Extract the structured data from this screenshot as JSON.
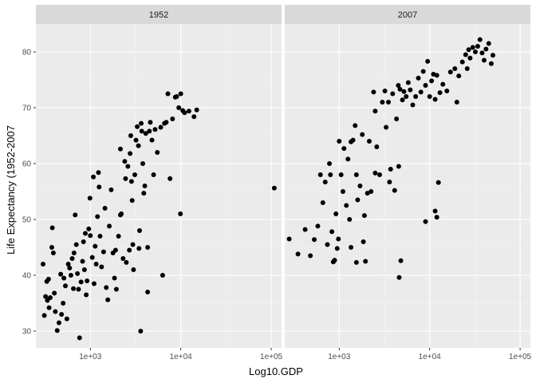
{
  "chart_data": {
    "type": "scatter",
    "xlabel": "Log10.GDP",
    "ylabel": "Life Expectancy (1952-2007",
    "x_scale": "log10",
    "xlim": [
      250,
      130000
    ],
    "ylim": [
      27,
      85
    ],
    "x_ticks": [
      {
        "value": 1000,
        "label": "1e+03"
      },
      {
        "value": 10000,
        "label": "1e+04"
      },
      {
        "value": 100000,
        "label": "1e+05"
      }
    ],
    "y_ticks": [
      {
        "value": 30,
        "label": "30"
      },
      {
        "value": 40,
        "label": "40"
      },
      {
        "value": 50,
        "label": "50"
      },
      {
        "value": 60,
        "label": "60"
      },
      {
        "value": 70,
        "label": "70"
      },
      {
        "value": 80,
        "label": "80"
      }
    ],
    "grid": true,
    "point_color": "#000000",
    "panel_background": "#ebebeb",
    "strip_background": "#d9d9d9",
    "panels": [
      {
        "facet": "1952",
        "points": [
          [
            300,
            42.0
          ],
          [
            310,
            32.8
          ],
          [
            320,
            36.2
          ],
          [
            330,
            38.9
          ],
          [
            335,
            35.5
          ],
          [
            345,
            39.3
          ],
          [
            350,
            34.2
          ],
          [
            360,
            36.0
          ],
          [
            375,
            45.0
          ],
          [
            380,
            48.5
          ],
          [
            390,
            44.0
          ],
          [
            400,
            36.8
          ],
          [
            410,
            33.5
          ],
          [
            430,
            30.1
          ],
          [
            450,
            31.5
          ],
          [
            470,
            40.2
          ],
          [
            480,
            33.0
          ],
          [
            500,
            35.0
          ],
          [
            510,
            39.5
          ],
          [
            530,
            38.1
          ],
          [
            550,
            32.2
          ],
          [
            570,
            42.0
          ],
          [
            590,
            41.3
          ],
          [
            610,
            40.0
          ],
          [
            630,
            43.0
          ],
          [
            650,
            37.6
          ],
          [
            660,
            44.0
          ],
          [
            680,
            50.8
          ],
          [
            700,
            45.5
          ],
          [
            720,
            40.3
          ],
          [
            740,
            37.5
          ],
          [
            760,
            28.8
          ],
          [
            790,
            38.8
          ],
          [
            820,
            42.5
          ],
          [
            840,
            46.0
          ],
          [
            860,
            41.0
          ],
          [
            880,
            47.5
          ],
          [
            900,
            36.5
          ],
          [
            920,
            39.0
          ],
          [
            960,
            48.3
          ],
          [
            990,
            53.8
          ],
          [
            1000,
            47.1
          ],
          [
            1050,
            43.2
          ],
          [
            1080,
            57.6
          ],
          [
            1100,
            38.5
          ],
          [
            1130,
            45.2
          ],
          [
            1160,
            42.0
          ],
          [
            1200,
            50.5
          ],
          [
            1230,
            58.4
          ],
          [
            1280,
            47.0
          ],
          [
            1330,
            41.5
          ],
          [
            1400,
            44.2
          ],
          [
            1450,
            52.0
          ],
          [
            1500,
            37.8
          ],
          [
            1560,
            35.6
          ],
          [
            1620,
            48.8
          ],
          [
            1700,
            55.3
          ],
          [
            1780,
            44.0
          ],
          [
            1850,
            39.5
          ],
          [
            1940,
            37.5
          ],
          [
            2050,
            47.0
          ],
          [
            2150,
            62.6
          ],
          [
            2200,
            51.0
          ],
          [
            2300,
            43.0
          ],
          [
            2400,
            60.4
          ],
          [
            2450,
            57.3
          ],
          [
            2500,
            42.3
          ],
          [
            2600,
            59.5
          ],
          [
            2700,
            44.5
          ],
          [
            2750,
            61.8
          ],
          [
            2800,
            65.0
          ],
          [
            2850,
            56.8
          ],
          [
            2900,
            53.4
          ],
          [
            2950,
            45.5
          ],
          [
            3000,
            41.0
          ],
          [
            3100,
            58.0
          ],
          [
            3200,
            64.2
          ],
          [
            3300,
            66.6
          ],
          [
            3400,
            63.2
          ],
          [
            3450,
            44.8
          ],
          [
            3500,
            48.0
          ],
          [
            3600,
            30.0
          ],
          [
            3700,
            65.8
          ],
          [
            3800,
            60.0
          ],
          [
            3900,
            54.7
          ],
          [
            4000,
            56.0
          ],
          [
            4100,
            65.4
          ],
          [
            4300,
            45.0
          ],
          [
            4500,
            65.8
          ],
          [
            4600,
            67.4
          ],
          [
            4800,
            64.2
          ],
          [
            5000,
            58.0
          ],
          [
            5200,
            66.1
          ],
          [
            5500,
            62.0
          ],
          [
            6000,
            66.5
          ],
          [
            6300,
            40.0
          ],
          [
            6600,
            67.2
          ],
          [
            6900,
            67.4
          ],
          [
            7200,
            72.5
          ],
          [
            7600,
            57.3
          ],
          [
            8100,
            68.0
          ],
          [
            8700,
            71.9
          ],
          [
            9000,
            72.0
          ],
          [
            9500,
            70.0
          ],
          [
            10000,
            72.5
          ],
          [
            10500,
            69.5
          ],
          [
            11000,
            69.1
          ],
          [
            12300,
            69.4
          ],
          [
            14000,
            68.4
          ],
          [
            15000,
            69.6
          ],
          [
            9900,
            51.0
          ],
          [
            108000,
            55.6
          ],
          [
            1250,
            55.8
          ],
          [
            2150,
            50.8
          ],
          [
            1900,
            44.5
          ],
          [
            3650,
            67.2
          ],
          [
            4300,
            37.0
          ]
        ]
      },
      {
        "facet": "2007",
        "points": [
          [
            280,
            46.5
          ],
          [
            350,
            43.8
          ],
          [
            420,
            48.2
          ],
          [
            480,
            43.5
          ],
          [
            530,
            46.4
          ],
          [
            580,
            48.8
          ],
          [
            620,
            58.0
          ],
          [
            660,
            53.0
          ],
          [
            700,
            56.7
          ],
          [
            740,
            45.5
          ],
          [
            780,
            60.0
          ],
          [
            800,
            58.0
          ],
          [
            830,
            47.8
          ],
          [
            860,
            42.4
          ],
          [
            890,
            42.7
          ],
          [
            920,
            51.0
          ],
          [
            950,
            44.8
          ],
          [
            980,
            46.5
          ],
          [
            1000,
            64.0
          ],
          [
            1050,
            58.0
          ],
          [
            1100,
            55.0
          ],
          [
            1130,
            62.7
          ],
          [
            1200,
            52.5
          ],
          [
            1250,
            60.8
          ],
          [
            1300,
            50.0
          ],
          [
            1350,
            63.9
          ],
          [
            1420,
            64.2
          ],
          [
            1500,
            66.8
          ],
          [
            1550,
            58.0
          ],
          [
            1600,
            53.5
          ],
          [
            1700,
            56.0
          ],
          [
            1800,
            65.2
          ],
          [
            1850,
            46.0
          ],
          [
            1900,
            50.7
          ],
          [
            1950,
            42.5
          ],
          [
            2050,
            54.7
          ],
          [
            2150,
            64.0
          ],
          [
            2250,
            55.0
          ],
          [
            2400,
            72.8
          ],
          [
            2500,
            69.4
          ],
          [
            2600,
            63.0
          ],
          [
            2800,
            58.0
          ],
          [
            3000,
            71.0
          ],
          [
            3200,
            73.0
          ],
          [
            3300,
            66.5
          ],
          [
            3500,
            71.0
          ],
          [
            3700,
            59.0
          ],
          [
            3900,
            72.5
          ],
          [
            4100,
            55.2
          ],
          [
            4300,
            68.0
          ],
          [
            4500,
            74.0
          ],
          [
            4700,
            73.3
          ],
          [
            5000,
            71.4
          ],
          [
            5200,
            72.9
          ],
          [
            5500,
            72.0
          ],
          [
            5800,
            74.5
          ],
          [
            6100,
            73.2
          ],
          [
            6500,
            70.5
          ],
          [
            7000,
            72.0
          ],
          [
            7500,
            75.3
          ],
          [
            8000,
            72.8
          ],
          [
            8500,
            76.5
          ],
          [
            9000,
            74.0
          ],
          [
            9500,
            78.3
          ],
          [
            10000,
            72.0
          ],
          [
            10500,
            74.8
          ],
          [
            11000,
            76.0
          ],
          [
            11500,
            71.5
          ],
          [
            12000,
            75.8
          ],
          [
            13000,
            72.7
          ],
          [
            14000,
            74.2
          ],
          [
            15500,
            73.0
          ],
          [
            17000,
            76.4
          ],
          [
            19000,
            77.0
          ],
          [
            21000,
            75.7
          ],
          [
            23000,
            78.2
          ],
          [
            25000,
            79.5
          ],
          [
            26000,
            77.0
          ],
          [
            27000,
            80.4
          ],
          [
            28000,
            78.9
          ],
          [
            30000,
            80.8
          ],
          [
            32000,
            80.0
          ],
          [
            34000,
            81.0
          ],
          [
            36000,
            82.2
          ],
          [
            38000,
            79.8
          ],
          [
            40000,
            78.5
          ],
          [
            42000,
            80.5
          ],
          [
            45000,
            81.5
          ],
          [
            48000,
            77.9
          ],
          [
            50000,
            79.4
          ],
          [
            1350,
            45.0
          ],
          [
            1550,
            42.3
          ],
          [
            4800,
            42.6
          ],
          [
            4600,
            39.6
          ],
          [
            9000,
            49.6
          ],
          [
            11500,
            51.5
          ],
          [
            12500,
            56.6
          ],
          [
            12000,
            50.4
          ],
          [
            20000,
            71.0
          ],
          [
            4550,
            59.5
          ],
          [
            2500,
            58.3
          ],
          [
            3600,
            56.7
          ]
        ]
      }
    ]
  }
}
